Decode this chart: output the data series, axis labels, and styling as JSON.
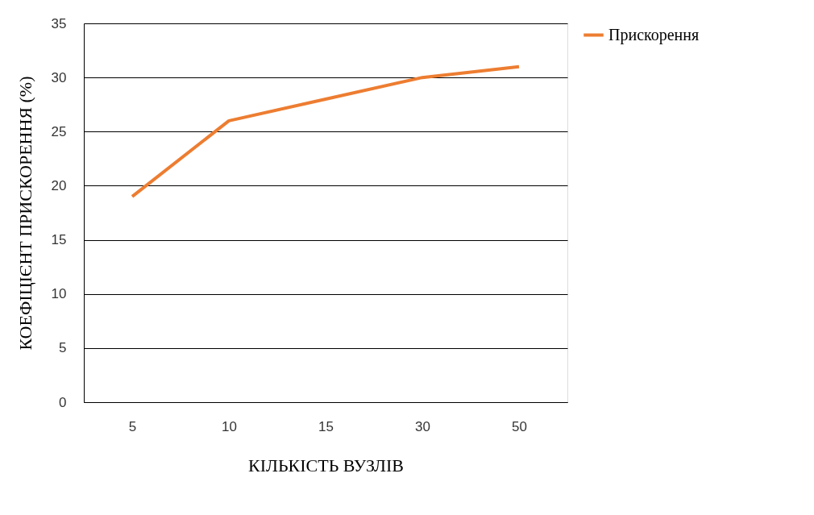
{
  "chart_data": {
    "type": "line",
    "xlabel": "КІЛЬКІСТЬ ВУЗЛІВ",
    "ylabel": "КОЕФІЦІЄНТ ПРИСКОРЕННЯ (%)",
    "categories": [
      "5",
      "10",
      "15",
      "30",
      "50"
    ],
    "series": [
      {
        "name": "Прискорення",
        "color": "#ed7d31",
        "values": [
          19,
          26,
          28,
          30,
          31
        ]
      }
    ],
    "ylim": [
      0,
      35
    ],
    "yticks": [
      0,
      5,
      10,
      15,
      20,
      25,
      30,
      35
    ],
    "grid": "y",
    "legend": "right",
    "marker": "none",
    "line_style": "solid"
  }
}
